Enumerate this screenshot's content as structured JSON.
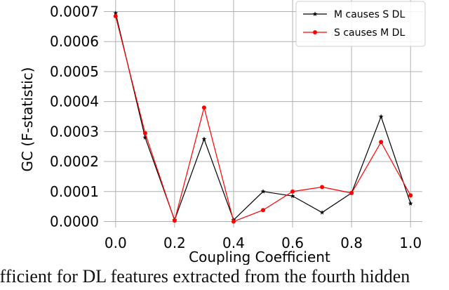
{
  "chart_data": {
    "type": "line",
    "xlabel": "Coupling Coefficient",
    "ylabel": "GC (F-statistic)",
    "xlim": [
      -0.04,
      1.04
    ],
    "ylim": [
      -2e-05,
      0.00072
    ],
    "x_ticks": [
      "0.0",
      "0.2",
      "0.4",
      "0.6",
      "0.8",
      "1.0"
    ],
    "x_tick_values": [
      0.0,
      0.2,
      0.4,
      0.6,
      0.8,
      1.0
    ],
    "y_ticks": [
      "0.0000",
      "0.0001",
      "0.0002",
      "0.0003",
      "0.0004",
      "0.0005",
      "0.0006",
      "0.0007"
    ],
    "y_tick_values": [
      0.0,
      0.0001,
      0.0002,
      0.0003,
      0.0004,
      0.0005,
      0.0006,
      0.0007
    ],
    "grid": true,
    "legend_position": "top-right",
    "x": [
      0.0,
      0.1,
      0.2,
      0.3,
      0.4,
      0.5,
      0.6,
      0.7,
      0.8,
      0.9,
      1.0
    ],
    "series": [
      {
        "name": "M causes S DL",
        "color": "#000000",
        "marker": "star",
        "values": [
          0.000695,
          0.00028,
          5e-06,
          0.000275,
          5e-06,
          0.0001,
          8.5e-05,
          3e-05,
          9.5e-05,
          0.00035,
          6e-05
        ]
      },
      {
        "name": "S causes M DL",
        "color": "#ff0000",
        "marker": "circle",
        "values": [
          0.000685,
          0.000295,
          3e-06,
          0.00038,
          0.0,
          3.8e-05,
          0.0001,
          0.000115,
          9.5e-05,
          0.000265,
          8.7e-05
        ]
      }
    ]
  },
  "caption": {
    "text": "efficient for DL features extracted from the fourth hidden"
  }
}
